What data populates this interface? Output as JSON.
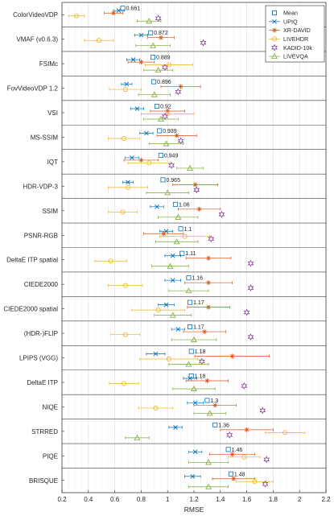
{
  "chart_data": {
    "type": "scatter",
    "xlabel": "RMSE",
    "xlim": [
      0.2,
      2.2
    ],
    "xticks": [
      "0.2",
      "0.4",
      "0.6",
      "0.8",
      "1",
      "1.2",
      "1.4",
      "1.6",
      "1.8",
      "2",
      "2.2"
    ],
    "grid": true,
    "legend_placement": "top-right",
    "metrics": [
      "ColorVideoVDP",
      "VMAF (v0.6.3)",
      "FSIMc",
      "FovVideoVDP 1.2",
      "VSI",
      "MS-SSIM",
      "IQT",
      "HDR-VDP-3",
      "SSIM",
      "PSNR-RGB",
      "DeltaE ITP spatial",
      "CIEDE2000",
      "CIEDE2000 spatial",
      "(HDR-)FLIP",
      "LPIPS (VGG)",
      "DeltaE ITP",
      "NIQE",
      "STRRED",
      "PIQE",
      "BRISQUE"
    ],
    "mean_labels": [
      "0.661",
      "0.872",
      "0.889",
      "0.896",
      "0.92",
      "0.939",
      "0.949",
      "0.965",
      "1.06",
      "1.1",
      "1.11",
      "1.16",
      "1.17",
      "1.17",
      "1.18",
      "1.18",
      "1.3",
      "1.36",
      "1.46",
      "1.48"
    ],
    "series": [
      {
        "name": "Mean",
        "color": "#0072bd",
        "marker": "square",
        "values": [
          0.661,
          0.872,
          0.889,
          0.896,
          0.92,
          0.939,
          0.949,
          0.965,
          1.06,
          1.1,
          1.11,
          1.16,
          1.17,
          1.17,
          1.18,
          1.18,
          1.3,
          1.36,
          1.46,
          1.48
        ],
        "errors": [
          0,
          0,
          0,
          0,
          0,
          0,
          0,
          0,
          0,
          0,
          0,
          0,
          0,
          0,
          0,
          0,
          0,
          0,
          0,
          0
        ]
      },
      {
        "name": "UPIQ",
        "color": "#0072bd",
        "marker": "x",
        "values": [
          0.63,
          0.8,
          0.74,
          0.69,
          0.77,
          0.84,
          0.73,
          0.7,
          0.92,
          0.99,
          1.04,
          1.04,
          0.99,
          1.08,
          0.91,
          1.17,
          1.21,
          1.06,
          1.21,
          1.19
        ],
        "errors": [
          0.04,
          0.05,
          0.05,
          0.04,
          0.05,
          0.05,
          0.05,
          0.04,
          0.05,
          0.05,
          0.06,
          0.06,
          0.06,
          0.05,
          0.07,
          0.05,
          0.06,
          0.05,
          0.05,
          0.06
        ]
      },
      {
        "name": "XR-DAVID",
        "color": "#d95319",
        "marker": "star",
        "values": [
          0.59,
          0.95,
          0.8,
          1.1,
          1.0,
          1.07,
          0.8,
          1.21,
          1.24,
          0.97,
          1.31,
          1.31,
          1.31,
          1.28,
          1.49,
          1.3,
          1.36,
          1.6,
          1.49,
          1.5
        ],
        "errors": [
          0.07,
          0.1,
          0.1,
          0.15,
          0.13,
          0.15,
          0.13,
          0.17,
          0.16,
          0.15,
          0.17,
          0.18,
          0.16,
          0.16,
          0.28,
          0.16,
          0.16,
          0.2,
          0.17,
          0.16
        ]
      },
      {
        "name": "LIVEHDR",
        "color": "#edb120",
        "marker": "circle",
        "values": [
          0.31,
          0.48,
          1.01,
          0.68,
          1.0,
          0.67,
          0.86,
          0.7,
          0.66,
          1.13,
          0.57,
          0.68,
          0.93,
          0.68,
          1.01,
          0.67,
          0.91,
          1.89,
          1.58,
          1.66
        ],
        "errors": [
          0.06,
          0.11,
          0.18,
          0.12,
          0.2,
          0.12,
          0.16,
          0.15,
          0.11,
          0.19,
          0.12,
          0.13,
          0.2,
          0.11,
          0.22,
          0.11,
          0.13,
          0.15,
          0.12,
          0.14
        ]
      },
      {
        "name": "KADID-10k",
        "color": "#7e2f8e",
        "marker": "hexagram",
        "values": [
          0.93,
          1.27,
          0.98,
          1.08,
          0.98,
          1.1,
          1.03,
          1.22,
          1.41,
          1.33,
          1.63,
          1.63,
          1.6,
          1.63,
          1.26,
          1.58,
          1.72,
          1.47,
          1.75,
          1.74
        ],
        "errors": [
          0,
          0,
          0,
          0,
          0,
          0,
          0,
          0,
          0,
          0,
          0,
          0,
          0,
          0,
          0,
          0,
          0,
          0,
          0,
          0
        ]
      },
      {
        "name": "LIVEVQA",
        "color": "#77ac30",
        "marker": "triangle",
        "values": [
          0.86,
          0.89,
          0.93,
          0.9,
          0.95,
          0.99,
          1.17,
          1.0,
          1.08,
          1.07,
          1.02,
          1.16,
          1.04,
          1.2,
          1.16,
          1.2,
          1.32,
          0.77,
          1.31,
          1.31
        ],
        "errors": [
          0.09,
          0.13,
          0.11,
          0.12,
          0.13,
          0.13,
          0.1,
          0.16,
          0.15,
          0.16,
          0.14,
          0.15,
          0.14,
          0.17,
          0.15,
          0.16,
          0.12,
          0.09,
          0.15,
          0.15
        ]
      }
    ]
  }
}
